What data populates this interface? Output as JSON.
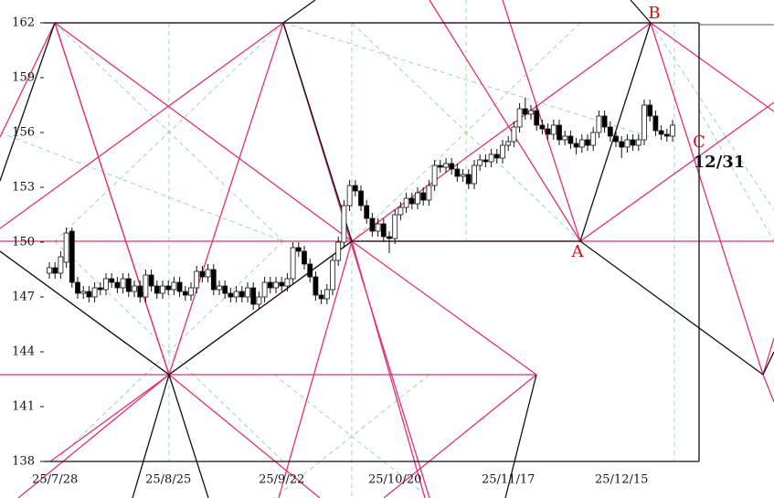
{
  "chart_data": {
    "type": "candlestick",
    "categories": [
      null,
      "25/7/28",
      null,
      null,
      null,
      null,
      null,
      null,
      null,
      null,
      null,
      null,
      null,
      null,
      null,
      null,
      null,
      null,
      null,
      null,
      null,
      "25/8/25",
      null,
      null,
      null,
      null,
      null,
      null,
      null,
      null,
      null,
      null,
      null,
      null,
      null,
      null,
      null,
      null,
      null,
      null,
      null,
      "25/9/22",
      null,
      null,
      null,
      null,
      null,
      null,
      null,
      null,
      null,
      null,
      null,
      null,
      null,
      null,
      null,
      null,
      null,
      null,
      null,
      "25/10/20",
      null,
      null,
      null,
      null,
      null,
      null,
      null,
      null,
      null,
      null,
      null,
      null,
      null,
      null,
      null,
      null,
      null,
      null,
      null,
      "25/11/17",
      null,
      null,
      null,
      null,
      null,
      null,
      null,
      null,
      null,
      null,
      null,
      null,
      null,
      null,
      null,
      null,
      null,
      null,
      null,
      "25/12/15",
      null,
      null,
      null,
      null,
      null,
      null,
      null,
      null,
      null
    ],
    "open": [
      148.3,
      148.6,
      148.3,
      148.9,
      150.6,
      147.8,
      147.2,
      147.3,
      147.0,
      147.5,
      147.4,
      148.0,
      147.8,
      147.5,
      148.0,
      147.3,
      147.6,
      147.0,
      148.2,
      147.6,
      147.2,
      147.6,
      147.4,
      147.8,
      147.3,
      147.1,
      147.5,
      148.4,
      148.1,
      148.5,
      147.4,
      147.6,
      147.2,
      147.0,
      147.3,
      147.0,
      147.5,
      146.6,
      147.0,
      147.8,
      147.5,
      147.8,
      147.6,
      148.0,
      149.7,
      149.5,
      148.8,
      148.1,
      147.1,
      146.9,
      147.4,
      149.0,
      150.0,
      152.0,
      153.1,
      152.8,
      152.0,
      151.3,
      150.6,
      151.0,
      150.3,
      150.2,
      151.5,
      151.9,
      152.4,
      152.1,
      152.7,
      152.3,
      153.1,
      154.2,
      154.1,
      154.3,
      154.0,
      153.6,
      153.7,
      153.2,
      154.2,
      154.5,
      154.4,
      154.8,
      154.6,
      155.3,
      155.5,
      156.3,
      157.3,
      157.0,
      157.2,
      156.4,
      156.2,
      155.9,
      156.4,
      155.6,
      155.8,
      155.4,
      155.2,
      155.6,
      155.3,
      156.0,
      156.9,
      156.3,
      155.8,
      155.5,
      155.2,
      155.6,
      155.3,
      155.6,
      157.5,
      156.9,
      156.1,
      155.9,
      155.8
    ],
    "high": [
      148.9,
      148.9,
      149.5,
      150.8,
      150.8,
      148.1,
      147.6,
      147.6,
      147.8,
      147.8,
      148.3,
      148.3,
      148.1,
      148.3,
      148.3,
      147.9,
      147.9,
      148.5,
      148.5,
      147.9,
      147.9,
      147.9,
      148.1,
      148.1,
      147.6,
      147.8,
      148.7,
      148.7,
      148.8,
      148.8,
      147.9,
      147.9,
      147.5,
      147.6,
      147.6,
      147.8,
      147.8,
      147.3,
      148.1,
      148.1,
      148.1,
      148.1,
      148.3,
      150.0,
      150.0,
      149.8,
      149.1,
      148.4,
      147.4,
      147.7,
      149.3,
      150.3,
      152.3,
      153.4,
      153.4,
      153.1,
      152.3,
      151.6,
      151.3,
      151.3,
      150.6,
      151.8,
      152.2,
      152.7,
      152.7,
      153.0,
      153.0,
      153.4,
      154.5,
      154.5,
      154.6,
      154.6,
      154.3,
      154.0,
      154.0,
      154.5,
      154.8,
      154.8,
      155.1,
      155.1,
      155.6,
      155.8,
      156.6,
      157.6,
      157.9,
      157.5,
      157.5,
      156.7,
      156.5,
      156.7,
      156.7,
      156.1,
      156.1,
      155.7,
      155.9,
      155.9,
      156.3,
      157.2,
      157.2,
      156.6,
      156.1,
      155.8,
      155.9,
      155.9,
      155.9,
      157.8,
      157.8,
      157.2,
      156.4,
      156.2,
      156.7
    ],
    "low": [
      148.0,
      148.0,
      148.0,
      148.6,
      147.5,
      146.9,
      146.9,
      146.7,
      146.7,
      147.1,
      147.1,
      147.5,
      147.2,
      147.2,
      147.0,
      147.0,
      146.7,
      146.7,
      147.3,
      146.9,
      146.9,
      147.1,
      147.1,
      147.0,
      146.8,
      146.8,
      147.2,
      147.8,
      147.8,
      147.1,
      147.1,
      146.9,
      146.7,
      146.7,
      146.7,
      146.7,
      146.3,
      146.3,
      146.7,
      147.2,
      147.2,
      147.3,
      147.3,
      147.7,
      149.2,
      148.5,
      147.8,
      146.8,
      146.6,
      146.6,
      147.1,
      148.7,
      149.7,
      151.7,
      152.5,
      151.7,
      151.0,
      150.3,
      150.3,
      150.0,
      149.4,
      149.9,
      151.2,
      151.6,
      151.8,
      151.8,
      152.0,
      152.0,
      152.8,
      153.8,
      153.8,
      153.7,
      153.3,
      153.3,
      152.9,
      152.9,
      153.9,
      154.1,
      154.1,
      154.3,
      154.3,
      155.0,
      155.2,
      156.0,
      156.7,
      156.7,
      156.1,
      155.9,
      155.6,
      155.6,
      155.3,
      155.3,
      155.1,
      154.8,
      154.9,
      155.0,
      155.0,
      155.7,
      156.0,
      155.5,
      155.2,
      154.6,
      154.9,
      155.0,
      155.0,
      155.3,
      156.6,
      155.8,
      155.6,
      155.5,
      155.5
    ],
    "close": [
      148.6,
      148.3,
      149.2,
      150.5,
      147.8,
      147.2,
      147.3,
      147.0,
      147.5,
      147.4,
      148.0,
      147.8,
      147.5,
      148.0,
      147.3,
      147.6,
      147.0,
      148.2,
      147.6,
      147.2,
      147.6,
      147.4,
      147.8,
      147.3,
      147.1,
      147.5,
      148.4,
      148.1,
      148.5,
      147.4,
      147.6,
      147.2,
      147.0,
      147.3,
      147.0,
      147.5,
      146.6,
      147.0,
      147.8,
      147.5,
      147.8,
      147.6,
      148.0,
      149.7,
      149.5,
      148.8,
      148.1,
      147.1,
      146.9,
      147.4,
      149.0,
      150.0,
      152.0,
      153.1,
      152.8,
      152.0,
      151.3,
      150.6,
      151.0,
      150.3,
      150.2,
      151.5,
      151.9,
      152.4,
      152.1,
      152.7,
      152.3,
      153.1,
      154.2,
      154.1,
      154.3,
      154.0,
      153.6,
      153.7,
      153.2,
      154.2,
      154.5,
      154.4,
      154.8,
      154.6,
      155.3,
      155.5,
      156.3,
      157.3,
      157.0,
      157.2,
      156.4,
      156.2,
      155.9,
      156.4,
      155.6,
      155.8,
      155.4,
      155.2,
      155.6,
      155.3,
      156.0,
      156.9,
      156.3,
      155.8,
      155.5,
      155.2,
      155.6,
      155.3,
      155.6,
      157.5,
      156.9,
      156.1,
      155.9,
      155.8,
      156.4
    ],
    "up_color": "#ffffff",
    "down_color": "#000000",
    "ylim": [
      138,
      162
    ],
    "yticks": [
      138,
      141,
      144,
      147,
      150,
      153,
      156,
      159,
      162
    ],
    "annotations": [
      "A",
      "B",
      "C",
      "12/31"
    ]
  }
}
